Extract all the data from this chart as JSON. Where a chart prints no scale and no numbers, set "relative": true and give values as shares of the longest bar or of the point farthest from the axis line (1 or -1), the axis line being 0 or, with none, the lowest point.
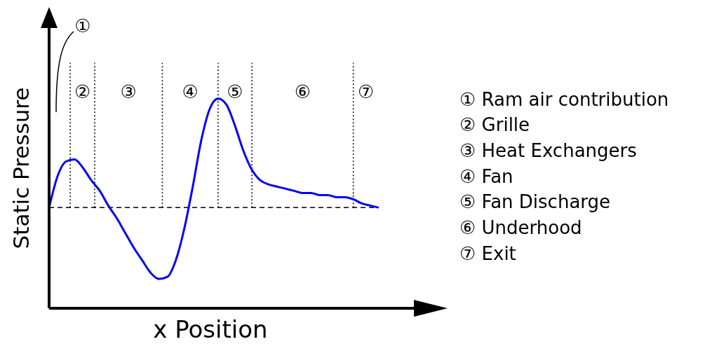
{
  "chart_data": {
    "type": "line",
    "xlabel": "x Position",
    "ylabel": "Static Pressure",
    "relative": true,
    "tick_labels": false,
    "marker": "none",
    "line_style": "solid",
    "grid": false,
    "legend": false,
    "categories": [
      null,
      null,
      null,
      null,
      null,
      null,
      null,
      null,
      null,
      null,
      null,
      null,
      null,
      null,
      null,
      null,
      null,
      null,
      null,
      null,
      null,
      null,
      null,
      null,
      null,
      null,
      null,
      null,
      null,
      null,
      null,
      null,
      null,
      null,
      null,
      null,
      null,
      null,
      null,
      null
    ],
    "series": [
      {
        "color": "#0000ff",
        "values": [
          0.48,
          0.63,
          0.7,
          0.71,
          0.67,
          0.61,
          0.56,
          0.49,
          0.43,
          0.36,
          0.29,
          0.23,
          0.17,
          0.14,
          0.15,
          0.23,
          0.38,
          0.58,
          0.8,
          0.95,
          1,
          0.97,
          0.87,
          0.75,
          0.66,
          0.61,
          0.59,
          0.58,
          0.57,
          0.56,
          0.55,
          0.55,
          0.54,
          0.54,
          0.53,
          0.53,
          0.52,
          0.5,
          0.49,
          0.48
        ]
      }
    ],
    "ref_lines": [
      {
        "axis": "y",
        "value": 0.48,
        "color": "#000000",
        "line_style": "dashed"
      }
    ],
    "annotations": [
      "①",
      "②",
      "③",
      "④",
      "⑤",
      "⑥",
      "⑦",
      "① Ram air contribution",
      "② Grille",
      "③ Heat Exchangers",
      "④ Fan",
      "⑤ Fan Discharge",
      "⑥ Underhood",
      "⑦ Exit"
    ]
  }
}
